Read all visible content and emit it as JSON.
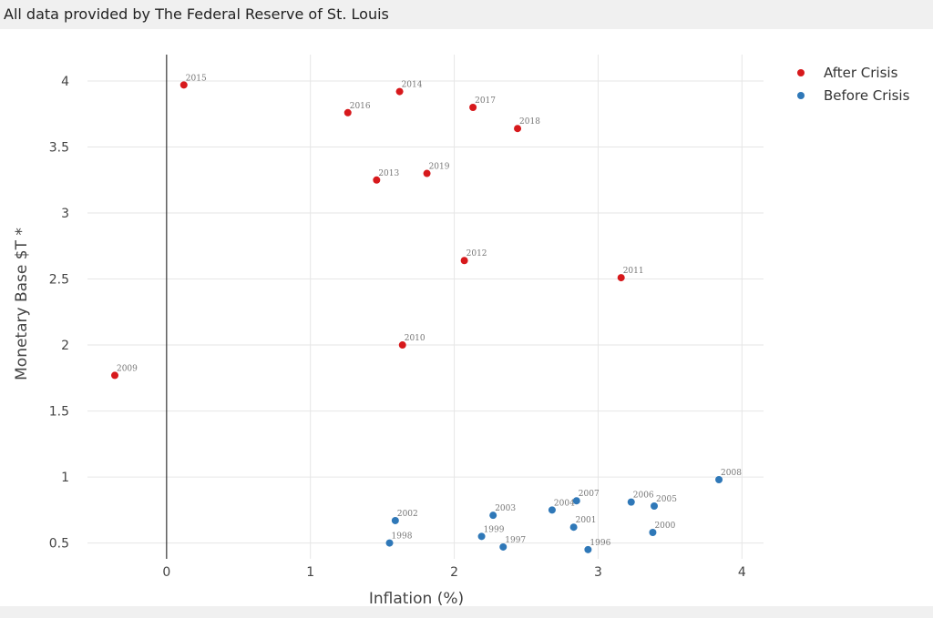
{
  "header": {
    "source_note": "All data provided by The Federal Reserve of St. Louis"
  },
  "colors": {
    "after_crisis": "#d7191c",
    "before_crisis": "#2f78b8",
    "grid": "#e6e6e6",
    "zero_line": "#333333"
  },
  "chart_data": {
    "type": "scatter",
    "title": "",
    "xlabel": "Inflation (%)",
    "ylabel": "Monetary Base $T *",
    "xlim": [
      -0.55,
      4.15
    ],
    "ylim": [
      0.38,
      4.2
    ],
    "x_ticks": [
      0,
      1,
      2,
      3,
      4
    ],
    "x_tick_labels": [
      "0",
      "1",
      "2",
      "3",
      "4"
    ],
    "y_ticks": [
      0.5,
      1,
      1.5,
      2,
      2.5,
      3,
      3.5,
      4
    ],
    "y_tick_labels": [
      "0.5",
      "1",
      "1.5",
      "2",
      "2.5",
      "3",
      "3.5",
      "4"
    ],
    "grid": true,
    "legend_position": "top-right",
    "series": [
      {
        "name": "After Crisis",
        "color": "#d7191c",
        "points": [
          {
            "label": "2009",
            "x": -0.36,
            "y": 1.77
          },
          {
            "label": "2010",
            "x": 1.64,
            "y": 2.0
          },
          {
            "label": "2011",
            "x": 3.16,
            "y": 2.51
          },
          {
            "label": "2012",
            "x": 2.07,
            "y": 2.64
          },
          {
            "label": "2013",
            "x": 1.46,
            "y": 3.25
          },
          {
            "label": "2014",
            "x": 1.62,
            "y": 3.92
          },
          {
            "label": "2015",
            "x": 0.12,
            "y": 3.97
          },
          {
            "label": "2016",
            "x": 1.26,
            "y": 3.76
          },
          {
            "label": "2017",
            "x": 2.13,
            "y": 3.8
          },
          {
            "label": "2018",
            "x": 2.44,
            "y": 3.64
          },
          {
            "label": "2019",
            "x": 1.81,
            "y": 3.3
          }
        ]
      },
      {
        "name": "Before Crisis",
        "color": "#2f78b8",
        "points": [
          {
            "label": "1996",
            "x": 2.93,
            "y": 0.45
          },
          {
            "label": "1997",
            "x": 2.34,
            "y": 0.47
          },
          {
            "label": "1998",
            "x": 1.55,
            "y": 0.5
          },
          {
            "label": "1999",
            "x": 2.19,
            "y": 0.55
          },
          {
            "label": "2000",
            "x": 3.38,
            "y": 0.58
          },
          {
            "label": "2001",
            "x": 2.83,
            "y": 0.62
          },
          {
            "label": "2002",
            "x": 1.59,
            "y": 0.67
          },
          {
            "label": "2003",
            "x": 2.27,
            "y": 0.71
          },
          {
            "label": "2004",
            "x": 2.68,
            "y": 0.75
          },
          {
            "label": "2005",
            "x": 3.39,
            "y": 0.78
          },
          {
            "label": "2006",
            "x": 3.23,
            "y": 0.81
          },
          {
            "label": "2007",
            "x": 2.85,
            "y": 0.82
          },
          {
            "label": "2008",
            "x": 3.84,
            "y": 0.98
          }
        ]
      }
    ]
  }
}
